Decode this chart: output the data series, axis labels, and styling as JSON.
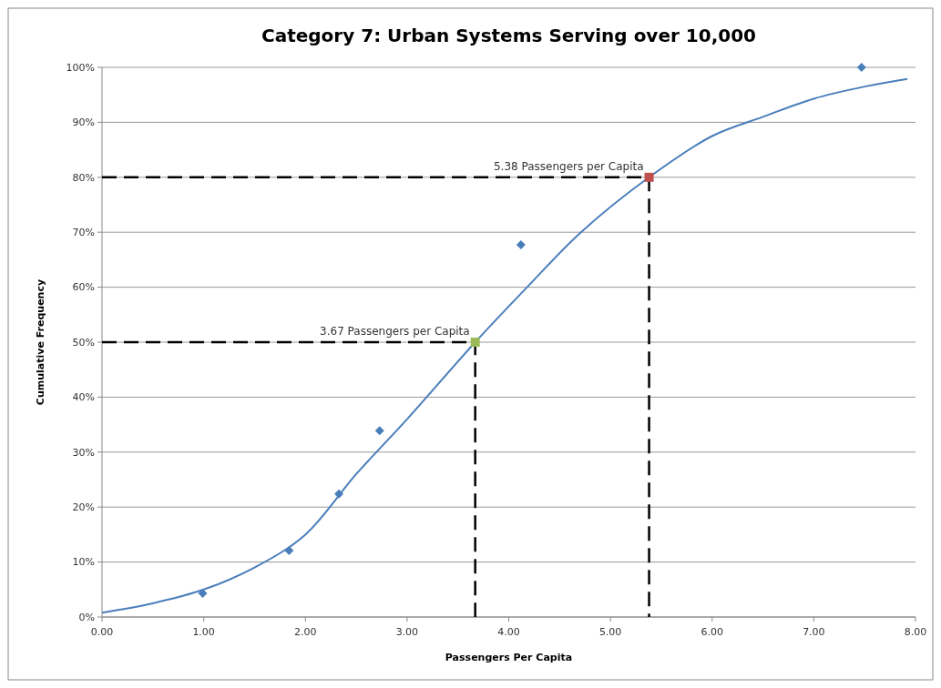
{
  "chart_data": {
    "type": "scatter",
    "title": "Category 7:  Urban Systems Serving over 10,000",
    "xlabel": "Passengers Per Capita",
    "ylabel": "Cumulative Frequency",
    "xlim": [
      0,
      8
    ],
    "ylim": [
      0,
      100
    ],
    "xticks": [
      {
        "value": 0,
        "label": "0.00"
      },
      {
        "value": 1,
        "label": "1.00"
      },
      {
        "value": 2,
        "label": "2.00"
      },
      {
        "value": 3,
        "label": "3.00"
      },
      {
        "value": 4,
        "label": "4.00"
      },
      {
        "value": 5,
        "label": "5.00"
      },
      {
        "value": 6,
        "label": "6.00"
      },
      {
        "value": 7,
        "label": "7.00"
      },
      {
        "value": 8,
        "label": "8.00"
      }
    ],
    "yticks": [
      {
        "value": 0,
        "label": "0%"
      },
      {
        "value": 10,
        "label": "10%"
      },
      {
        "value": 20,
        "label": "20%"
      },
      {
        "value": 30,
        "label": "30%"
      },
      {
        "value": 40,
        "label": "40%"
      },
      {
        "value": 50,
        "label": "50%"
      },
      {
        "value": 60,
        "label": "60%"
      },
      {
        "value": 70,
        "label": "70%"
      },
      {
        "value": 80,
        "label": "80%"
      },
      {
        "value": 90,
        "label": "90%"
      },
      {
        "value": 100,
        "label": "100%"
      }
    ],
    "grid": "y",
    "series": [
      {
        "type": "line",
        "color": "#000000",
        "line_style": "dashed",
        "marker": "none",
        "x": [
          0,
          3.67,
          3.67
        ],
        "values": [
          50,
          50,
          0
        ]
      },
      {
        "type": "line",
        "color": "#000000",
        "line_style": "dashed",
        "marker": "none",
        "x": [
          0,
          5.38,
          5.38
        ],
        "values": [
          80,
          80,
          0
        ]
      },
      {
        "type": "line",
        "color": "#4a7ebb",
        "line_style": "solid",
        "marker": "none",
        "x": [
          0,
          0.5,
          1,
          1.5,
          2,
          2.5,
          3,
          3.67,
          4.18,
          4.71,
          5.38,
          6,
          6.5,
          7,
          7.5,
          7.92
        ],
        "values": [
          0.8,
          2.5,
          5,
          9,
          15,
          26,
          36,
          50,
          60,
          70,
          80,
          87.5,
          91,
          94.3,
          96.5,
          97.9
        ]
      },
      {
        "type": "scatter",
        "color": "#4a7ebb",
        "marker": "diamond",
        "x": [
          0.99,
          1.84,
          2.33,
          2.73,
          4.12,
          7.47
        ],
        "values": [
          4.3,
          12.1,
          22.4,
          33.9,
          67.7,
          100
        ]
      },
      {
        "type": "scatter",
        "color": "#9bbb59",
        "marker": "square",
        "x": [
          3.67
        ],
        "values": [
          50
        ]
      },
      {
        "type": "scatter",
        "color": "#c0504d",
        "marker": "square",
        "x": [
          5.38
        ],
        "values": [
          80
        ]
      }
    ],
    "annotations": [
      {
        "text": "3.67 Passengers per Capita",
        "x": 3.67,
        "y": 50
      },
      {
        "text": "5.38 Passengers per Capita",
        "x": 5.38,
        "y": 80
      }
    ]
  }
}
